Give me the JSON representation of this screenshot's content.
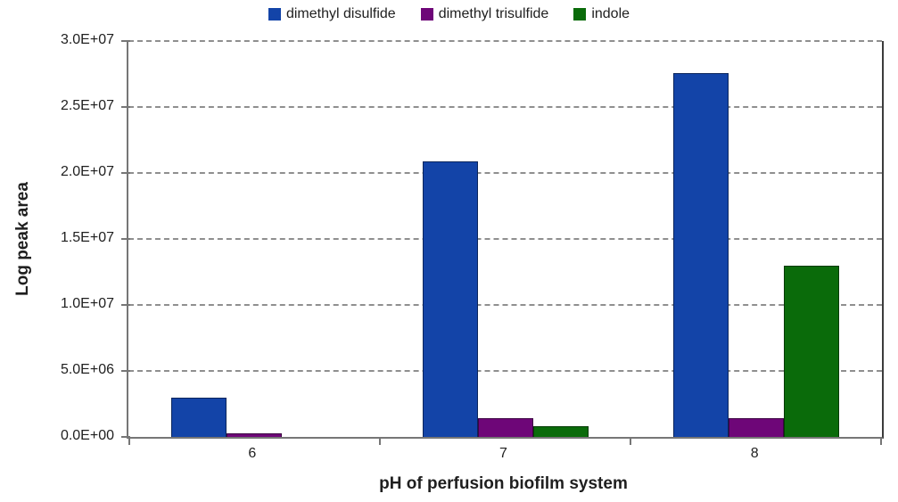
{
  "chart_data": {
    "type": "bar",
    "title": "",
    "categories": [
      "6",
      "7",
      "8"
    ],
    "series": [
      {
        "name": "dimethyl disulfide",
        "color": "#1344A8",
        "values": [
          3000000,
          20900000,
          27600000
        ]
      },
      {
        "name": "dimethyl trisulfide",
        "color": "#6E0678",
        "values": [
          250000,
          1400000,
          1400000
        ]
      },
      {
        "name": "indole",
        "color": "#0A6B0A",
        "values": [
          0,
          800000,
          13000000
        ]
      }
    ],
    "xlabel": "pH of perfusion biofilm system",
    "ylabel": "Log peak area",
    "ylim": [
      0,
      30000000
    ],
    "ytick_step": 5000000,
    "ytick_labels": [
      "0.0E+00",
      "5.0E+06",
      "1.0E+07",
      "1.5E+07",
      "2.0E+07",
      "2.5E+07",
      "3.0E+07"
    ],
    "grid": "horizontal-dashed",
    "legend_position": "top-center",
    "colors": {
      "gridline": "#8f8f8f",
      "axis": "#767676",
      "text": "#1f1f1f",
      "background": "#ffffff"
    }
  }
}
